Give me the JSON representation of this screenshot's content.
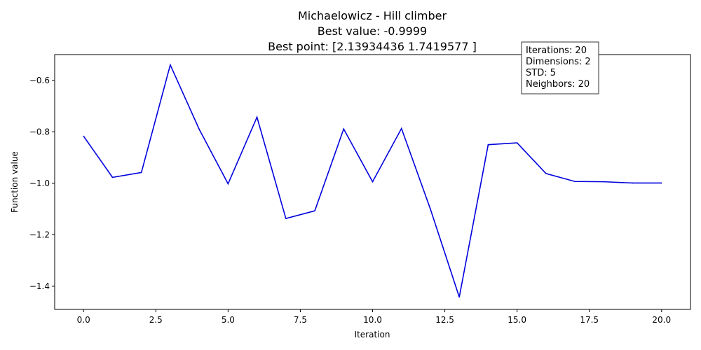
{
  "chart_data": {
    "type": "line",
    "title_lines": [
      "Michaelowicz - Hill climber",
      "Best value: -0.9999",
      "Best point: [2.13934436 1.7419577 ]"
    ],
    "xlabel": "Iteration",
    "ylabel": "Function value",
    "xlim": [
      -1,
      21
    ],
    "ylim": [
      -1.49,
      -0.5
    ],
    "xticks": [
      0.0,
      2.5,
      5.0,
      7.5,
      10.0,
      12.5,
      15.0,
      17.5,
      20.0
    ],
    "xtick_labels": [
      "0.0",
      "2.5",
      "5.0",
      "7.5",
      "10.0",
      "12.5",
      "15.0",
      "17.5",
      "20.0"
    ],
    "yticks": [
      -0.6,
      -0.8,
      -1.0,
      -1.2,
      -1.4
    ],
    "ytick_labels": [
      "−0.6",
      "−0.8",
      "−1.0",
      "−1.2",
      "−1.4"
    ],
    "grid": false,
    "series": [
      {
        "color": "#0000dd",
        "x": [
          0,
          1,
          2,
          3,
          4,
          5,
          6,
          7,
          8,
          9,
          10,
          11,
          12,
          13,
          14,
          15,
          16,
          17,
          18,
          19,
          20
        ],
        "y": [
          -0.817,
          -0.977,
          -0.958,
          -0.54,
          -0.79,
          -1.002,
          -0.743,
          -1.137,
          -1.107,
          -0.789,
          -0.994,
          -0.787,
          -1.1,
          -1.442,
          -0.85,
          -0.843,
          -0.962,
          -0.993,
          -0.994,
          -0.999,
          -0.999
        ]
      }
    ],
    "info_box": {
      "position": "top-right",
      "lines": [
        "Iterations: 20",
        "Dimensions: 2",
        "STD: 5",
        "Neighbors: 20"
      ]
    }
  }
}
